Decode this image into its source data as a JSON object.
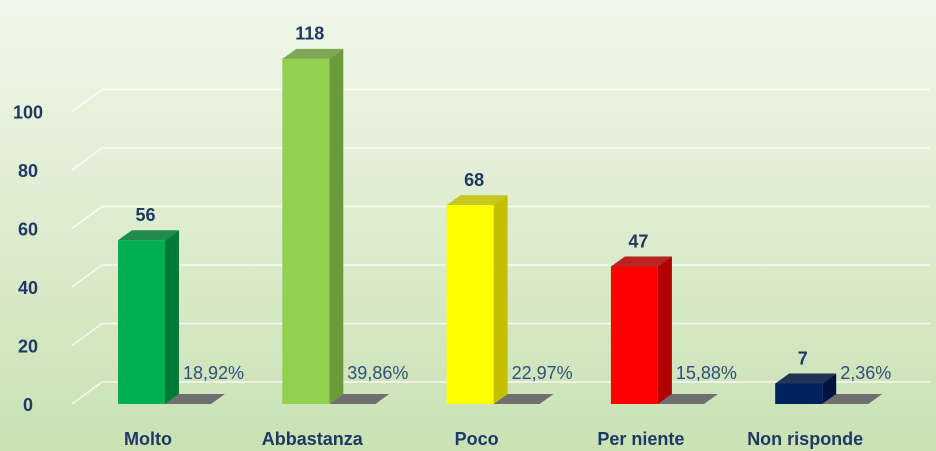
{
  "chart_data": {
    "type": "bar3d",
    "categories": [
      "Molto",
      "Abbastanza",
      "Poco",
      "Per niente",
      "Non risponde"
    ],
    "values": [
      56,
      118,
      68,
      47,
      7
    ],
    "colors": [
      "#00b050",
      "#92d050",
      "#ffff00",
      "#ff0000",
      "#002060"
    ],
    "side_colors": [
      "#007a38",
      "#6b9a3a",
      "#c4c000",
      "#b00000",
      "#00143f"
    ],
    "percentages": {
      "values": [
        18.92,
        39.86,
        22.97,
        15.88,
        2.36
      ],
      "value_labels": [
        "18,92%",
        "39,86%",
        "22,97%",
        "15,88%",
        "2,36%"
      ]
    },
    "ylim": [
      0,
      120
    ],
    "yticks": [
      0,
      20,
      40,
      60,
      80,
      100
    ],
    "grid": true
  }
}
